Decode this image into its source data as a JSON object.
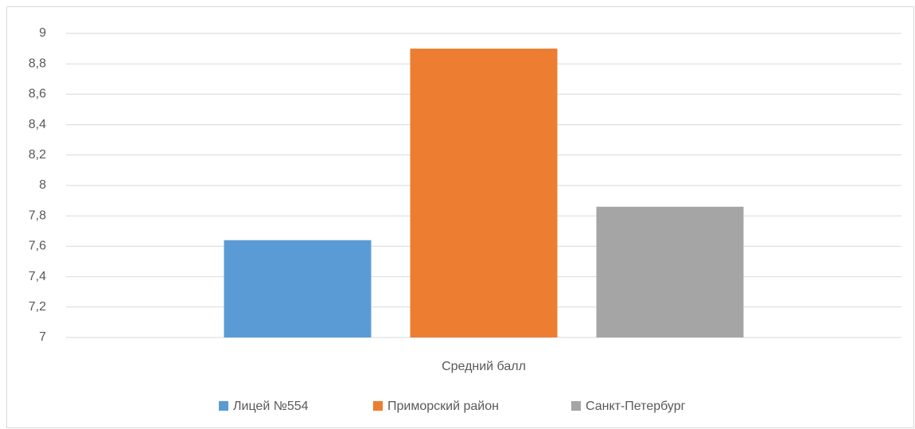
{
  "chart_data": {
    "type": "bar",
    "categories": [
      "Средний балл"
    ],
    "series": [
      {
        "name": "Лицей №554",
        "color": "#5b9bd5",
        "values": [
          7.64
        ]
      },
      {
        "name": "Приморский район",
        "color": "#ed7d31",
        "values": [
          8.9
        ]
      },
      {
        "name": "Санкт-Петербург",
        "color": "#a5a5a5",
        "values": [
          7.86
        ]
      }
    ],
    "ylim": [
      7,
      9
    ],
    "yticks": [
      7,
      {
        "value": 7.2,
        "label": "7,2"
      },
      {
        "value": 7.4,
        "label": "7,4"
      },
      {
        "value": 7.6,
        "label": "7,6"
      },
      {
        "value": 7.8,
        "label": "7,8"
      },
      8,
      {
        "value": 8.2,
        "label": "8,2"
      },
      {
        "value": 8.4,
        "label": "8,4"
      },
      {
        "value": 8.6,
        "label": "8,6"
      },
      {
        "value": 8.8,
        "label": "8,8"
      },
      9
    ],
    "grid": true,
    "legend": "bottom"
  }
}
